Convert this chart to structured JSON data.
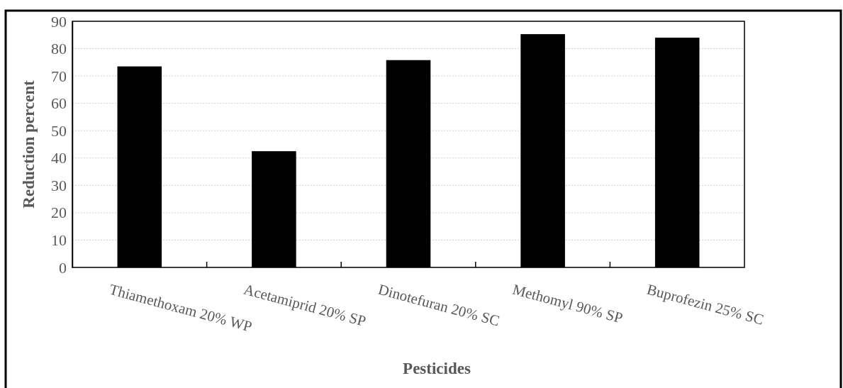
{
  "chart_data": {
    "type": "bar",
    "xlabel": "Pesticides",
    "ylabel": "Reduction percent",
    "categories": [
      "Thiamethoxam 20% WP",
      "Acetamiprid 20% SP",
      "Dinotefuran 20% SC",
      "Methomyl  90% SP",
      "Buprofezin 25% SC"
    ],
    "values": [
      73.5,
      42.5,
      75.8,
      85.3,
      84.0
    ],
    "color": "#000000",
    "ylim": [
      0,
      90
    ],
    "yticks": [
      0,
      10,
      20,
      30,
      40,
      50,
      60,
      70,
      80,
      90
    ],
    "grid": "y"
  }
}
